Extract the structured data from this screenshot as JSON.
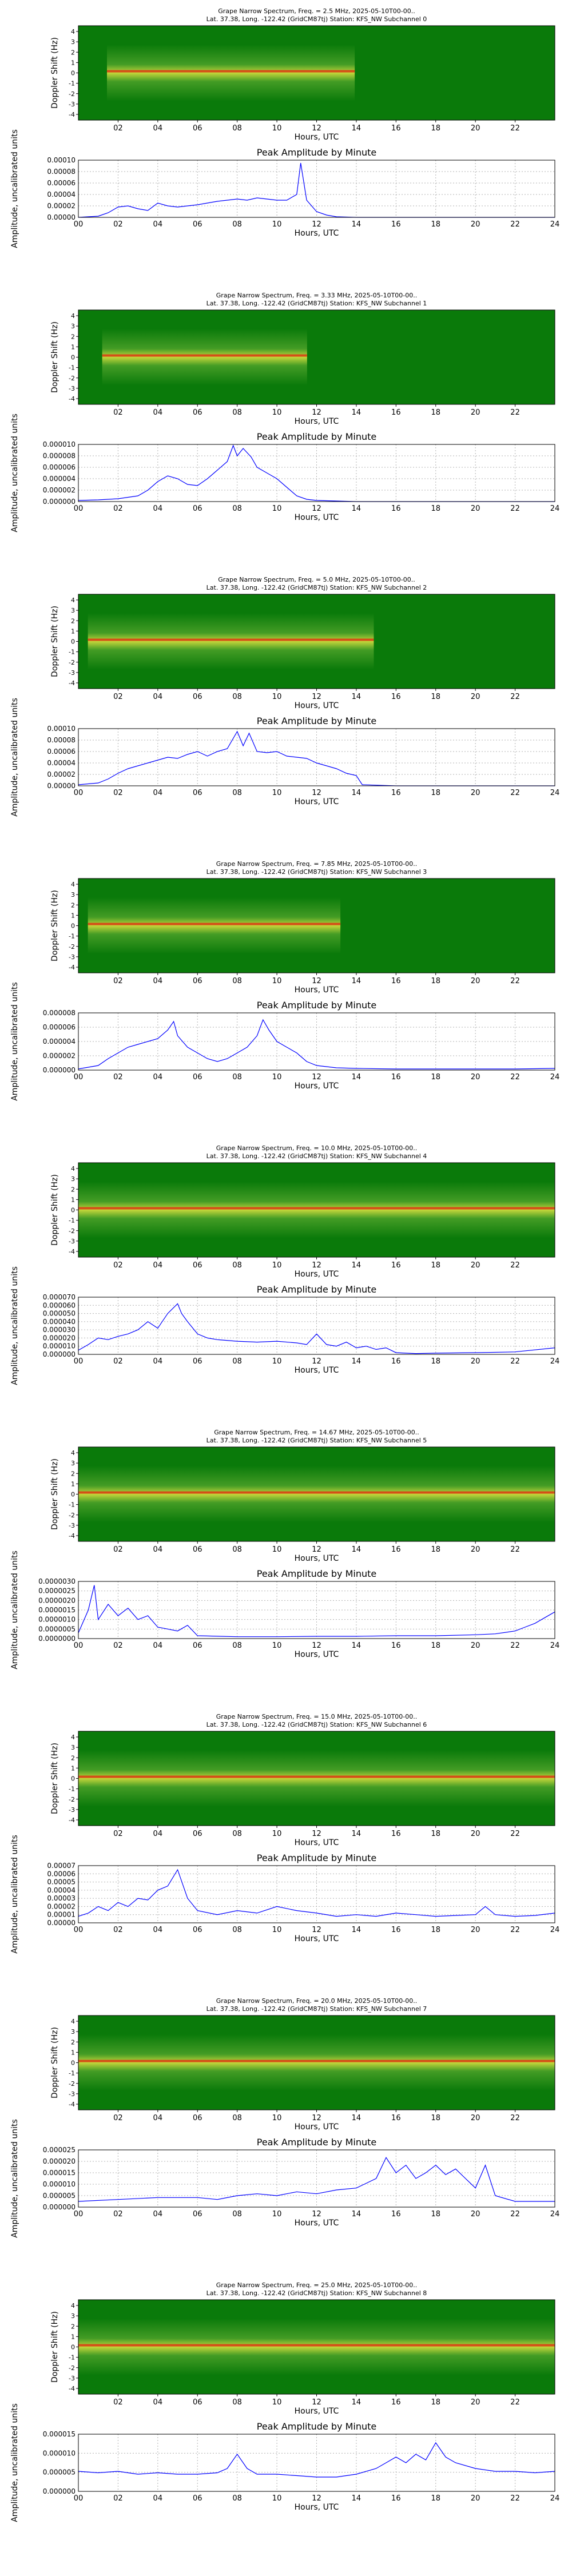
{
  "spectra": [
    {
      "title_line1": "Grape Narrow Spectrum, Freq. = 2.5 MHz, 2025-05-10T00-00..",
      "title_line2": "Lat.  37.38, Long. -122.42 (GridCM87tj) Station: KFS_NW Subchannel 0",
      "xlabel": "Hours, UTC",
      "ylabel": "Doppler Shift (Hz)"
    },
    {
      "title_line1": "Grape Narrow Spectrum, Freq. = 3.33 MHz, 2025-05-10T00-00..",
      "title_line2": "Lat.  37.38, Long. -122.42 (GridCM87tj) Station: KFS_NW Subchannel 1",
      "xlabel": "Hours, UTC",
      "ylabel": "Doppler Shift (Hz)"
    },
    {
      "title_line1": "Grape Narrow Spectrum, Freq. = 5.0 MHz, 2025-05-10T00-00..",
      "title_line2": "Lat.  37.38, Long. -122.42 (GridCM87tj) Station: KFS_NW Subchannel 2",
      "xlabel": "Hours, UTC",
      "ylabel": "Doppler Shift (Hz)"
    },
    {
      "title_line1": "Grape Narrow Spectrum, Freq. = 7.85 MHz, 2025-05-10T00-00..",
      "title_line2": "Lat.  37.38, Long. -122.42 (GridCM87tj) Station: KFS_NW Subchannel 3",
      "xlabel": "Hours, UTC",
      "ylabel": "Doppler Shift (Hz)"
    },
    {
      "title_line1": "Grape Narrow Spectrum, Freq. = 10.0 MHz, 2025-05-10T00-00..",
      "title_line2": "Lat.  37.38, Long. -122.42 (GridCM87tj) Station: KFS_NW Subchannel 4",
      "xlabel": "Hours, UTC",
      "ylabel": "Doppler Shift (Hz)"
    },
    {
      "title_line1": "Grape Narrow Spectrum, Freq. = 14.67 MHz, 2025-05-10T00-00..",
      "title_line2": "Lat.  37.38, Long. -122.42 (GridCM87tj) Station: KFS_NW Subchannel 5",
      "xlabel": "Hours, UTC",
      "ylabel": "Doppler Shift (Hz)"
    },
    {
      "title_line1": "Grape Narrow Spectrum, Freq. = 15.0 MHz, 2025-05-10T00-00..",
      "title_line2": "Lat.  37.38, Long. -122.42 (GridCM87tj) Station: KFS_NW Subchannel 6",
      "xlabel": "Hours, UTC",
      "ylabel": "Doppler Shift (Hz)"
    },
    {
      "title_line1": "Grape Narrow Spectrum, Freq. = 20.0 MHz, 2025-05-10T00-00..",
      "title_line2": "Lat.  37.38, Long. -122.42 (GridCM87tj) Station: KFS_NW Subchannel 7",
      "xlabel": "Hours, UTC",
      "ylabel": "Doppler Shift (Hz)"
    },
    {
      "title_line1": "Grape Narrow Spectrum, Freq. = 25.0 MHz, 2025-05-10T00-00..",
      "title_line2": "Lat.  37.38, Long. -122.42 (GridCM87tj) Station: KFS_NW Subchannel 8",
      "xlabel": "Hours, UTC",
      "ylabel": "Doppler Shift (Hz)"
    }
  ],
  "spectrum_xticks": [
    "02",
    "04",
    "06",
    "08",
    "10",
    "12",
    "14",
    "16",
    "18",
    "20",
    "22"
  ],
  "spectrum_yticks": [
    "4",
    "3",
    "2",
    "1",
    "0",
    "-1",
    "-2",
    "-3",
    "-4"
  ],
  "amp_xticks": [
    "00",
    "02",
    "04",
    "06",
    "08",
    "10",
    "12",
    "14",
    "16",
    "18",
    "20",
    "22",
    "24"
  ],
  "colors": {
    "spectrum_bg": "#0a7a0a",
    "spectrum_mid": "#d8e040",
    "spectrum_peak": "#e03010",
    "line": "#0000ff",
    "grid": "#b0b0b0"
  },
  "chart_data": [
    {
      "type": "line",
      "title": "Peak Amplitude by Minute",
      "xlabel": "Hours, UTC",
      "ylabel": "Amplitude, uncalibrated units",
      "xlim": [
        0,
        24
      ],
      "ylim": [
        0,
        0.0001
      ],
      "yticks": [
        "0.00000",
        "0.00002",
        "0.00004",
        "0.00006",
        "0.00008",
        "0.00010"
      ],
      "x": [
        0,
        1,
        1.5,
        2,
        2.5,
        3,
        3.5,
        4,
        4.5,
        5,
        5.5,
        6,
        6.5,
        7,
        7.5,
        8,
        8.5,
        9,
        9.5,
        10,
        10.5,
        11,
        11.2,
        11.5,
        12,
        12.5,
        13,
        14,
        16,
        18,
        20,
        22,
        24
      ],
      "y": [
        0,
        2e-06,
        8e-06,
        1.8e-05,
        2e-05,
        1.5e-05,
        1.2e-05,
        2.5e-05,
        2e-05,
        1.8e-05,
        2e-05,
        2.2e-05,
        2.5e-05,
        2.8e-05,
        3e-05,
        3.2e-05,
        3e-05,
        3.4e-05,
        3.2e-05,
        3e-05,
        3e-05,
        4e-05,
        9.5e-05,
        3e-05,
        1e-05,
        4e-06,
        1e-06,
        0,
        0,
        0,
        0,
        0,
        0
      ]
    },
    {
      "type": "line",
      "title": "Peak Amplitude by Minute",
      "xlabel": "Hours, UTC",
      "ylabel": "Amplitude, uncalibrated units",
      "xlim": [
        0,
        24
      ],
      "ylim": [
        0,
        1e-05
      ],
      "yticks": [
        "0.000000",
        "0.000002",
        "0.000004",
        "0.000006",
        "0.000008",
        "0.000010"
      ],
      "x": [
        0,
        1,
        2,
        3,
        3.5,
        4,
        4.5,
        5,
        5.5,
        6,
        6.5,
        7,
        7.5,
        7.8,
        8,
        8.3,
        8.7,
        9,
        9.5,
        10,
        10.5,
        11,
        11.5,
        12,
        13,
        14,
        16,
        18,
        20,
        22,
        24
      ],
      "y": [
        2e-07,
        3e-07,
        5e-07,
        1e-06,
        2e-06,
        3.5e-06,
        4.5e-06,
        4e-06,
        3e-06,
        2.8e-06,
        4e-06,
        5.5e-06,
        7e-06,
        9.8e-06,
        8e-06,
        9.3e-06,
        7.8e-06,
        6e-06,
        5e-06,
        4e-06,
        2.5e-06,
        1e-06,
        4e-07,
        2e-07,
        1e-07,
        0,
        0,
        0,
        0,
        0,
        0
      ]
    },
    {
      "type": "line",
      "title": "Peak Amplitude by Minute",
      "xlabel": "Hours, UTC",
      "ylabel": "Amplitude, uncalibrated units",
      "xlim": [
        0,
        24
      ],
      "ylim": [
        0,
        0.0001
      ],
      "yticks": [
        "0.00000",
        "0.00002",
        "0.00004",
        "0.00006",
        "0.00008",
        "0.00010"
      ],
      "x": [
        0,
        1,
        1.5,
        2,
        2.5,
        3,
        3.5,
        4,
        4.5,
        5,
        5.5,
        6,
        6.5,
        7,
        7.5,
        8,
        8.3,
        8.6,
        9,
        9.5,
        10,
        10.5,
        11,
        11.5,
        12,
        12.5,
        13,
        13.5,
        14,
        14.3,
        16,
        18,
        20,
        22,
        24
      ],
      "y": [
        2e-06,
        5e-06,
        1.2e-05,
        2.2e-05,
        3e-05,
        3.5e-05,
        4e-05,
        4.5e-05,
        5e-05,
        4.8e-05,
        5.5e-05,
        6e-05,
        5.2e-05,
        6e-05,
        6.5e-05,
        9.5e-05,
        7e-05,
        9.2e-05,
        6e-05,
        5.8e-05,
        6e-05,
        5.2e-05,
        5e-05,
        4.8e-05,
        4e-05,
        3.5e-05,
        3e-05,
        2.2e-05,
        1.8e-05,
        2e-06,
        0,
        0,
        0,
        0,
        0
      ]
    },
    {
      "type": "line",
      "title": "Peak Amplitude by Minute",
      "xlabel": "Hours, UTC",
      "ylabel": "Amplitude, uncalibrated units",
      "xlim": [
        0,
        24
      ],
      "ylim": [
        0,
        1e-05
      ],
      "yticks": [
        "0.000000",
        "0.000002",
        "0.000004",
        "0.000006",
        "0.000008"
      ],
      "x": [
        0,
        1,
        1.5,
        2,
        2.5,
        3,
        3.5,
        4,
        4.5,
        4.8,
        5,
        5.5,
        6,
        6.5,
        7,
        7.5,
        8,
        8.5,
        9,
        9.3,
        9.6,
        10,
        10.5,
        11,
        11.5,
        12,
        13,
        14,
        16,
        18,
        20,
        22,
        24
      ],
      "y": [
        2e-07,
        8e-07,
        2e-06,
        3e-06,
        4e-06,
        4.5e-06,
        5e-06,
        5.5e-06,
        7e-06,
        8.5e-06,
        6e-06,
        4e-06,
        3e-06,
        2e-06,
        1.5e-06,
        2e-06,
        3e-06,
        4e-06,
        6e-06,
        8.8e-06,
        7e-06,
        5e-06,
        4e-06,
        3e-06,
        1.5e-06,
        8e-07,
        4e-07,
        3e-07,
        2e-07,
        2e-07,
        2e-07,
        2e-07,
        3e-07
      ]
    },
    {
      "type": "line",
      "title": "Peak Amplitude by Minute",
      "xlabel": "Hours, UTC",
      "ylabel": "Amplitude, uncalibrated units",
      "xlim": [
        0,
        24
      ],
      "ylim": [
        0,
        7e-05
      ],
      "yticks": [
        "0.000000",
        "0.000010",
        "0.000020",
        "0.000030",
        "0.000040",
        "0.000050",
        "0.000060",
        "0.000070"
      ],
      "x": [
        0,
        0.5,
        1,
        1.5,
        2,
        2.5,
        3,
        3.5,
        4,
        4.5,
        5,
        5.2,
        5.5,
        6,
        6.5,
        7,
        8,
        9,
        10,
        11,
        11.5,
        12,
        12.5,
        13,
        13.5,
        14,
        14.5,
        15,
        15.5,
        16,
        17,
        18,
        20,
        22,
        24
      ],
      "y": [
        5e-06,
        1.2e-05,
        2e-05,
        1.8e-05,
        2.2e-05,
        2.5e-05,
        3e-05,
        4e-05,
        3.2e-05,
        5e-05,
        6.2e-05,
        5e-05,
        4e-05,
        2.5e-05,
        2e-05,
        1.8e-05,
        1.6e-05,
        1.5e-05,
        1.6e-05,
        1.4e-05,
        1.2e-05,
        2.5e-05,
        1.2e-05,
        1e-05,
        1.5e-05,
        8e-06,
        1e-05,
        6e-06,
        8e-06,
        2e-06,
        1e-06,
        1.5e-06,
        2e-06,
        3e-06,
        8e-06
      ]
    },
    {
      "type": "line",
      "title": "Peak Amplitude by Minute",
      "xlabel": "Hours, UTC",
      "ylabel": "Amplitude, uncalibrated units",
      "xlim": [
        0,
        24
      ],
      "ylim": [
        0,
        3e-06
      ],
      "yticks": [
        "0.0000000",
        "0.0000005",
        "0.0000010",
        "0.0000015",
        "0.0000020",
        "0.0000025",
        "0.0000030"
      ],
      "x": [
        0,
        0.5,
        0.8,
        1,
        1.5,
        2,
        2.5,
        3,
        3.5,
        4,
        4.5,
        5,
        5.5,
        6,
        8,
        10,
        12,
        14,
        16,
        18,
        20,
        21,
        22,
        22.5,
        23,
        23.5,
        24
      ],
      "y": [
        3e-07,
        1.5e-06,
        2.8e-06,
        1e-06,
        1.8e-06,
        1.2e-06,
        1.6e-06,
        1e-06,
        1.2e-06,
        6e-07,
        5e-07,
        4e-07,
        7e-07,
        1.5e-07,
        1e-07,
        1e-07,
        1.2e-07,
        1.2e-07,
        1.5e-07,
        1.5e-07,
        2e-07,
        2.5e-07,
        4e-07,
        6e-07,
        8e-07,
        1.1e-06,
        1.4e-06
      ]
    },
    {
      "type": "line",
      "title": "Peak Amplitude by Minute",
      "xlabel": "Hours, UTC",
      "ylabel": "Amplitude, uncalibrated units",
      "xlim": [
        0,
        24
      ],
      "ylim": [
        0,
        7e-05
      ],
      "yticks": [
        "0.00000",
        "0.00001",
        "0.00002",
        "0.00003",
        "0.00004",
        "0.00005",
        "0.00006",
        "0.00007"
      ],
      "x": [
        0,
        0.5,
        1,
        1.5,
        2,
        2.5,
        3,
        3.5,
        4,
        4.5,
        5,
        5.5,
        6,
        7,
        8,
        9,
        10,
        11,
        12,
        13,
        14,
        15,
        16,
        17,
        18,
        19,
        20,
        20.5,
        21,
        22,
        23,
        24
      ],
      "y": [
        8e-06,
        1.2e-05,
        2e-05,
        1.5e-05,
        2.5e-05,
        2e-05,
        3e-05,
        2.8e-05,
        4e-05,
        4.5e-05,
        6.5e-05,
        3e-05,
        1.5e-05,
        1e-05,
        1.5e-05,
        1.2e-05,
        2e-05,
        1.5e-05,
        1.2e-05,
        8e-06,
        1e-05,
        8e-06,
        1.2e-05,
        1e-05,
        8e-06,
        9e-06,
        1e-05,
        2e-05,
        1e-05,
        8e-06,
        9e-06,
        1.2e-05
      ]
    },
    {
      "type": "line",
      "title": "Peak Amplitude by Minute",
      "xlabel": "Hours, UTC",
      "ylabel": "Amplitude, uncalibrated units",
      "xlim": [
        0,
        24
      ],
      "ylim": [
        0,
        3e-05
      ],
      "yticks": [
        "0.000000",
        "0.000005",
        "0.000010",
        "0.000015",
        "0.000020",
        "0.000025"
      ],
      "x": [
        0,
        2,
        4,
        6,
        7,
        8,
        9,
        10,
        11,
        12,
        13,
        14,
        15,
        15.5,
        16,
        16.5,
        17,
        17.5,
        18,
        18.5,
        19,
        19.5,
        20,
        20.5,
        21,
        22,
        23,
        24
      ],
      "y": [
        3e-06,
        4e-06,
        5e-06,
        5e-06,
        4e-06,
        6e-06,
        7e-06,
        6e-06,
        8e-06,
        7e-06,
        9e-06,
        1e-05,
        1.5e-05,
        2.6e-05,
        1.8e-05,
        2.2e-05,
        1.5e-05,
        1.8e-05,
        2.2e-05,
        1.7e-05,
        2e-05,
        1.5e-05,
        1e-05,
        2.2e-05,
        6e-06,
        3e-06,
        3e-06,
        3e-06
      ]
    },
    {
      "type": "line",
      "title": "Peak Amplitude by Minute",
      "xlabel": "Hours, UTC",
      "ylabel": "Amplitude, uncalibrated units",
      "xlim": [
        0,
        24
      ],
      "ylim": [
        0,
        2e-05
      ],
      "yticks": [
        "0.000000",
        "0.000005",
        "0.000010",
        "0.000015"
      ],
      "x": [
        0,
        1,
        2,
        3,
        4,
        5,
        6,
        7,
        7.5,
        8,
        8.5,
        9,
        10,
        11,
        12,
        13,
        14,
        15,
        15.5,
        16,
        16.5,
        17,
        17.5,
        18,
        18.5,
        19,
        20,
        21,
        22,
        23,
        24
      ],
      "y": [
        7e-06,
        6.5e-06,
        7e-06,
        6e-06,
        6.5e-06,
        6e-06,
        6e-06,
        6.5e-06,
        8e-06,
        1.3e-05,
        8e-06,
        6e-06,
        6e-06,
        5.5e-06,
        5e-06,
        5e-06,
        6e-06,
        8e-06,
        1e-05,
        1.2e-05,
        1e-05,
        1.3e-05,
        1.1e-05,
        1.7e-05,
        1.2e-05,
        1e-05,
        8e-06,
        7e-06,
        7e-06,
        6.5e-06,
        7e-06
      ]
    }
  ]
}
